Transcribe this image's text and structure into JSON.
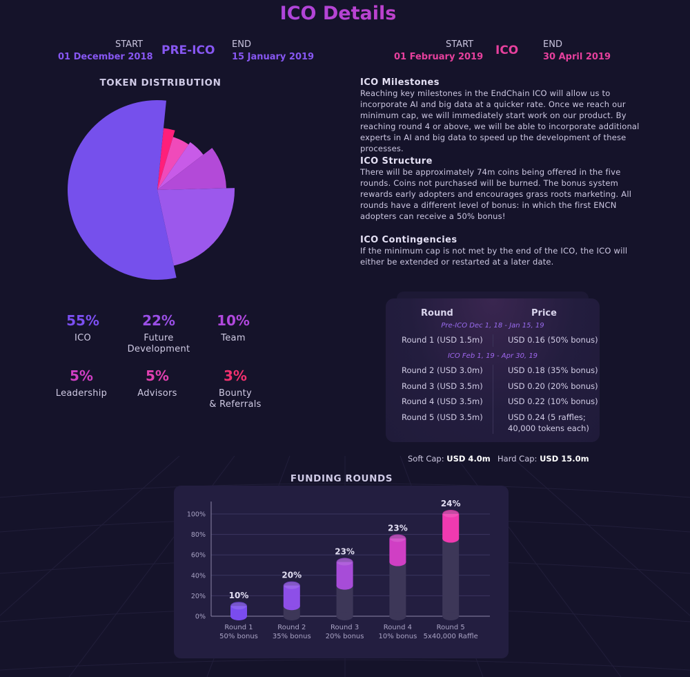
{
  "title": "ICO Details",
  "pre_ico": {
    "start_label": "START",
    "start_date": "01 December 2018",
    "name": "PRE-ICO",
    "end_label": "END",
    "end_date": "15 January 2019"
  },
  "ico": {
    "start_label": "START",
    "start_date": "01 February 2019",
    "name": "ICO",
    "end_label": "END",
    "end_date": "30 April 2019"
  },
  "token_distribution": {
    "heading": "TOKEN DISTRIBUTION",
    "stats": [
      {
        "pct": "55%",
        "label": "ICO",
        "color": "#7b4ff0"
      },
      {
        "pct": "22%",
        "label": "Future\nDevelopment",
        "color": "#9a4fe6"
      },
      {
        "pct": "10%",
        "label": "Team",
        "color": "#b048dd"
      },
      {
        "pct": "5%",
        "label": "Leadership",
        "color": "#d03fc4"
      },
      {
        "pct": "5%",
        "label": "Advisors",
        "color": "#e040b0"
      },
      {
        "pct": "3%",
        "label": "Bounty\n& Referrals",
        "color": "#f0306e"
      }
    ],
    "pie": [
      {
        "value": 55,
        "color": "#7650ec"
      },
      {
        "value": 22,
        "color": "#9c58ec"
      },
      {
        "value": 10,
        "color": "#b34ad8"
      },
      {
        "value": 5,
        "color": "#c85be8"
      },
      {
        "value": 5,
        "color": "#f04aba"
      },
      {
        "value": 3,
        "color": "#ff1f7a"
      }
    ]
  },
  "info": {
    "milestones_title": "ICO Milestones",
    "milestones_text": "Reaching key milestones in the EndChain ICO will allow us to incorporate AI and big data at a quicker rate. Once we reach our minimum cap, we will immediately start work on our product. By reaching round 4 or above, we will be able to incorporate additional experts in AI and big data to speed up the development of these processes.",
    "structure_title": "ICO Structure",
    "structure_text": "There will be approximately 74m coins being offered in the five rounds. Coins not purchased will be burned. The bonus system rewards early adopters and encourages grass roots marketing. All rounds have a different level of bonus: in which the first ENCN adopters can receive a 50% bonus!",
    "contingencies_title": "ICO Contingencies",
    "contingencies_text": "If the minimum cap is not met by the end of the ICO, the ICO will either be extended or restarted at a later date."
  },
  "pricing": {
    "col_round": "Round",
    "col_price": "Price",
    "pre_ico_label": "Pre-ICO Dec 1, 18 - Jan 15, 19",
    "ico_label": "ICO Feb 1, 19 - Apr 30, 19",
    "rows": [
      {
        "round": "Round 1 (USD 1.5m)",
        "price": "USD 0.16 (50% bonus)"
      },
      {
        "round": "Round 2 (USD 3.0m)",
        "price": "USD 0.18 (35% bonus)"
      },
      {
        "round": "Round 3 (USD 3.5m)",
        "price": "USD 0.20 (20% bonus)"
      },
      {
        "round": "Round 4 (USD 3.5m)",
        "price": "USD 0.22 (10% bonus)"
      },
      {
        "round": "Round 5 (USD 3.5m)",
        "price": "USD 0.24 (5 raffles;\n40,000 tokens each)"
      }
    ],
    "soft_cap_label": "Soft Cap:",
    "soft_cap_value": "USD 4.0m",
    "hard_cap_label": "Hard Cap:",
    "hard_cap_value": "USD 15.0m"
  },
  "chart_data": {
    "type": "bar",
    "title": "FUNDING ROUNDS",
    "categories": [
      "Round 1",
      "Round 2",
      "Round 3",
      "Round 4",
      "Round 5"
    ],
    "sublabels": [
      "50% bonus",
      "35% bonus",
      "20% bonus",
      "10% bonus",
      "5x40,000 Raffle"
    ],
    "values": [
      10,
      20,
      23,
      23,
      24
    ],
    "value_labels": [
      "10%",
      "20%",
      "23%",
      "23%",
      "24%"
    ],
    "cumulative": [
      10,
      30,
      53,
      76,
      100
    ],
    "yticks": [
      "0%",
      "20%",
      "40%",
      "60%",
      "80%",
      "100%"
    ],
    "ylim": [
      0,
      100
    ],
    "grid": true,
    "colors": [
      "#7a4cee",
      "#8d4fe8",
      "#a74cd8",
      "#d03fc4",
      "#f03ab0"
    ]
  }
}
